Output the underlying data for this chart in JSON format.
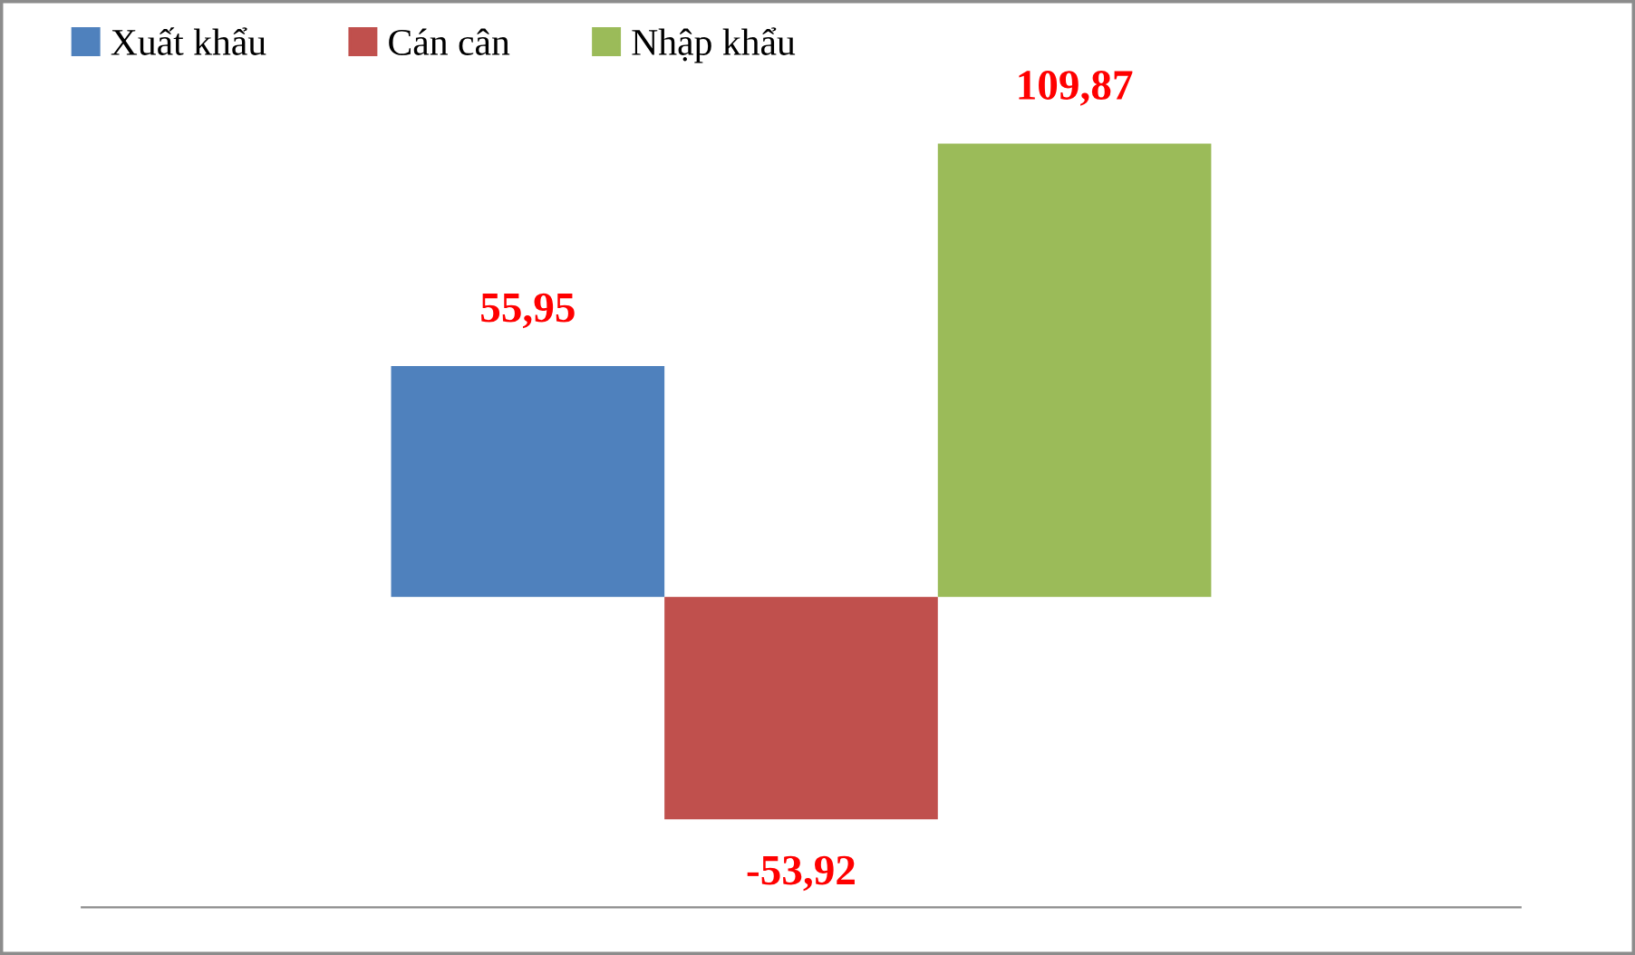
{
  "chart_data": {
    "type": "bar",
    "categories": [
      null
    ],
    "legend": "top left",
    "series": [
      {
        "name": "Xuất khẩu",
        "color": "#4f81bd",
        "values": [
          55.95
        ],
        "value_labels": [
          "55,95"
        ]
      },
      {
        "name": "Cán cân",
        "color": "#c0504d",
        "values": [
          -53.92
        ],
        "value_labels": [
          "-53,92"
        ]
      },
      {
        "name": "Nhập khẩu",
        "color": "#9bbb59",
        "values": [
          109.87
        ],
        "value_labels": [
          "109,87"
        ]
      }
    ]
  }
}
